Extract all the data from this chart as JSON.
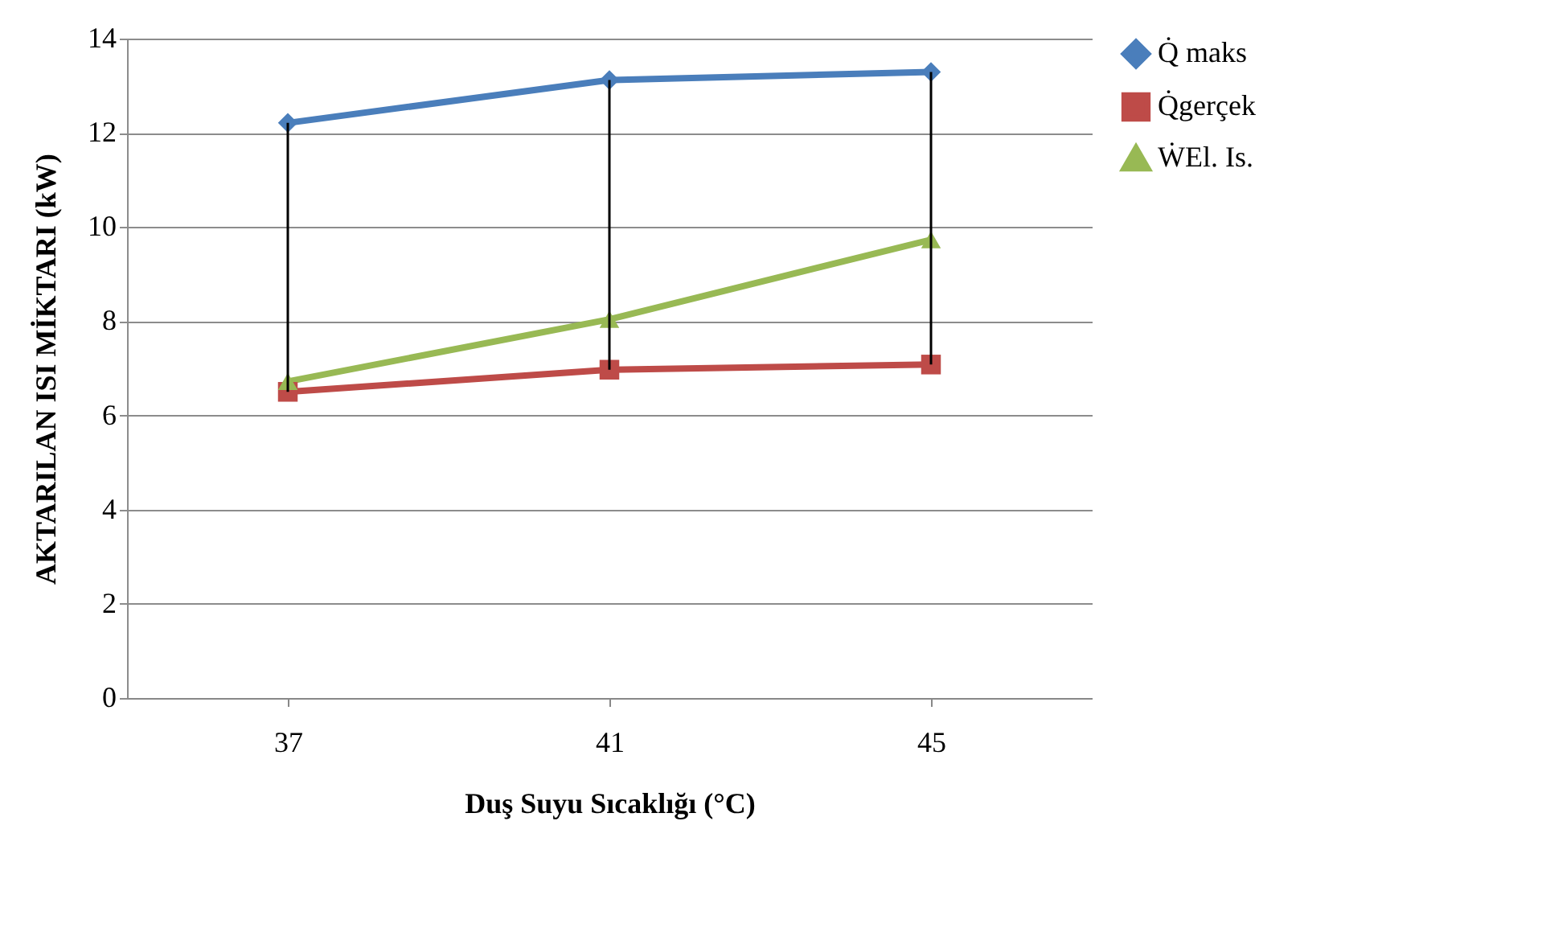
{
  "chart_data": {
    "type": "line",
    "xlabel": "Duş Suyu Sıcaklığı (°C)",
    "ylabel": "AKTARILAN ISI MİKTARI (kW)",
    "categories": [
      "37",
      "41",
      "45"
    ],
    "series": [
      {
        "name": "Q̇ maks",
        "color": "#4a7ebb",
        "marker": "diamond",
        "values": [
          12.21,
          13.12,
          13.29
        ],
        "errors": [
          [
            6.5,
            12.21
          ],
          [
            6.97,
            13.12
          ],
          [
            7.08,
            13.29
          ]
        ]
      },
      {
        "name": "Q̇gerçek",
        "color": "#be4b48",
        "marker": "square",
        "values": [
          6.5,
          6.97,
          7.08
        ]
      },
      {
        "name": "ẆEl. Is.",
        "color": "#98b954",
        "marker": "triangle",
        "values": [
          6.72,
          8.04,
          9.73
        ]
      }
    ],
    "ylim": [
      0,
      14
    ],
    "yticks": [
      0,
      2,
      4,
      6,
      8,
      10,
      12,
      14
    ],
    "grid": "y",
    "legend": "right"
  }
}
